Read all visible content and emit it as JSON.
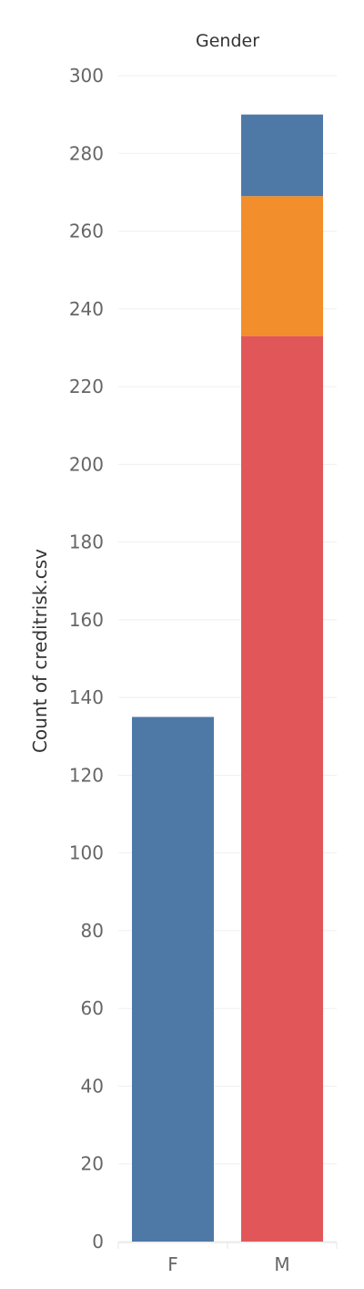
{
  "chart_data": {
    "type": "bar",
    "stacked": true,
    "column_header": "Gender",
    "ylabel": "Count of creditrisk.csv",
    "categories": [
      "F",
      "M"
    ],
    "ylim": [
      0,
      300
    ],
    "y_ticks": [
      0,
      20,
      40,
      60,
      80,
      100,
      120,
      140,
      160,
      180,
      200,
      220,
      240,
      260,
      280,
      300
    ],
    "grid": true,
    "series": [
      {
        "color": "#e15759",
        "values": [
          0,
          233
        ]
      },
      {
        "color": "#f28e2b",
        "values": [
          0,
          36
        ]
      },
      {
        "color": "#4e79a7",
        "values": [
          135,
          21
        ]
      }
    ]
  }
}
